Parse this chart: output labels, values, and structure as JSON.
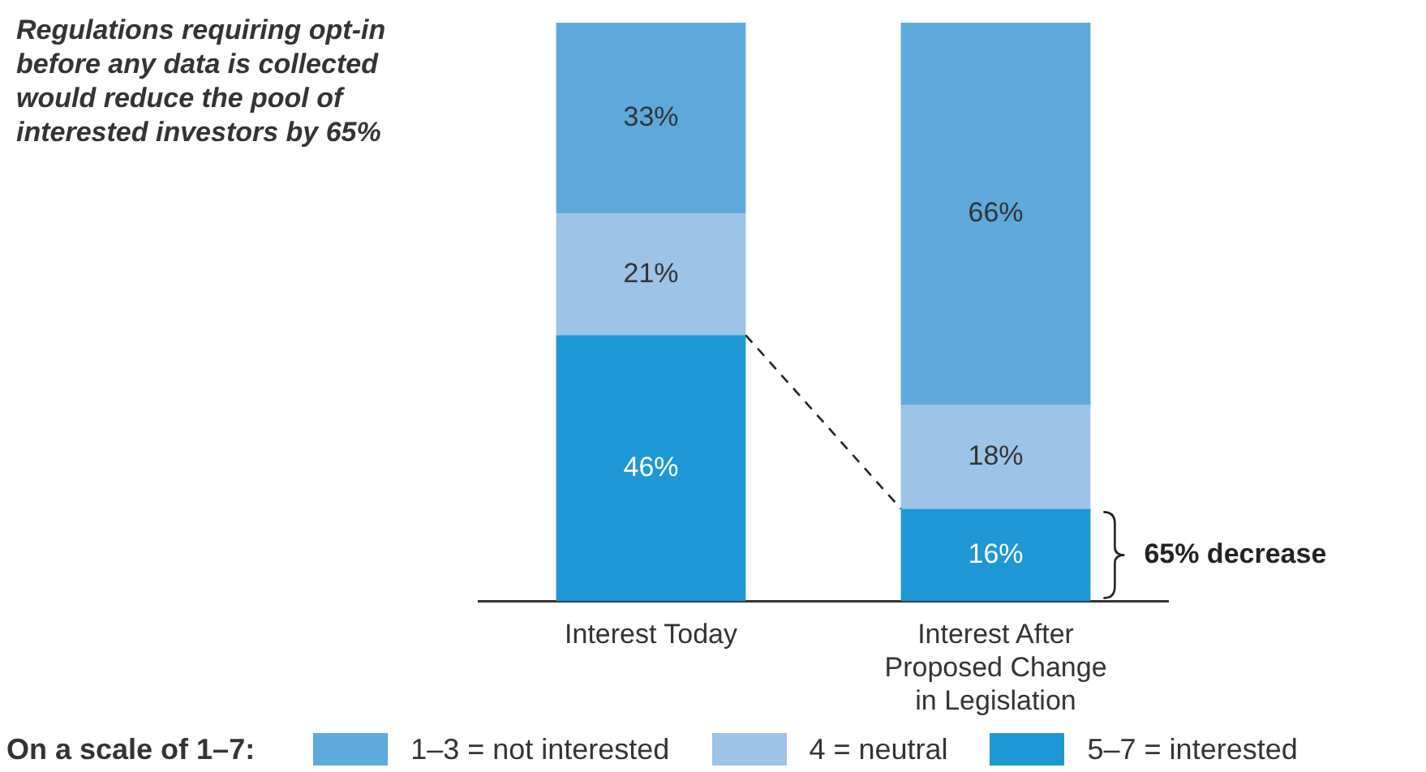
{
  "chart_data": {
    "type": "bar",
    "title": "Regulations requiring opt-in before any data is collected would reduce the pool of interested investors by 65%",
    "categories": [
      "Interest Today",
      "Interest After Proposed Change in Legislation"
    ],
    "stacked": true,
    "legend": "bottom",
    "legend_title": "On a scale of 1–7:",
    "series": [
      {
        "name": "5–7 = interested",
        "color": "#1f97d4",
        "values": [
          46,
          16
        ],
        "value_labels": [
          "46%",
          "16%"
        ]
      },
      {
        "name": "4 = neutral",
        "color": "#9dc3e6",
        "values": [
          21,
          18
        ],
        "value_labels": [
          "21%",
          "18%"
        ]
      },
      {
        "name": "1–3 = not interested",
        "color": "#5ea9dc",
        "values": [
          33,
          66
        ],
        "value_labels": [
          "33%",
          "66%"
        ]
      }
    ],
    "annotations": [
      "65% decrease"
    ]
  }
}
